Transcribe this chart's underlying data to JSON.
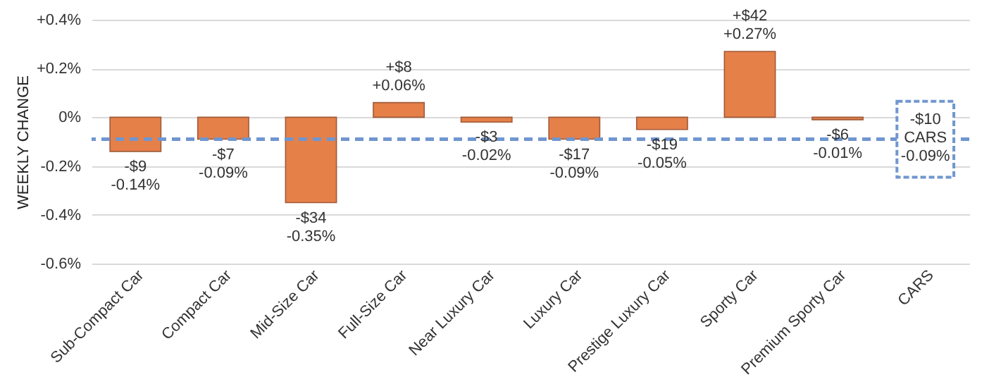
{
  "chart_data": {
    "type": "bar",
    "ylabel": "WEEKLY CHANGE",
    "categories": [
      "Sub-Compact Car",
      "Compact Car",
      "Mid-Size Car",
      "Full-Size Car",
      "Near Luxury Car",
      "Luxury Car",
      "Prestige Luxury Car",
      "Sporty Car",
      "Premium Sporty Car",
      "CARS"
    ],
    "values": [
      -0.14,
      -0.09,
      -0.35,
      0.06,
      -0.02,
      -0.09,
      -0.05,
      0.27,
      -0.01,
      null
    ],
    "value_labels": [
      "-$9\n-0.14%",
      "-$7\n-0.09%",
      "-$34\n-0.35%",
      "+$8\n+0.06%",
      "-$3\n-0.02%",
      "-$17\n-0.09%",
      "-$19\n-0.05%",
      "+$42\n+0.27%",
      "-$6\n-0.01%",
      null
    ],
    "color": "#e58049",
    "ylim": [
      -0.6,
      0.4
    ],
    "yticks": [
      {
        "value": -0.6,
        "label": "-0.6%"
      },
      {
        "value": -0.4,
        "label": "-0.4%"
      },
      {
        "value": -0.2,
        "label": "-0.2%"
      },
      {
        "value": 0,
        "label": "0%"
      },
      {
        "value": 0.2,
        "label": "+0.2%"
      },
      {
        "value": 0.4,
        "label": "+0.4%"
      }
    ],
    "grid": "y",
    "ref_lines": [
      {
        "axis": "y",
        "value": -0.09,
        "label": "-$10\nCARS\n-0.09%",
        "color": "#6f96cf",
        "line_style": "dashed"
      }
    ]
  }
}
